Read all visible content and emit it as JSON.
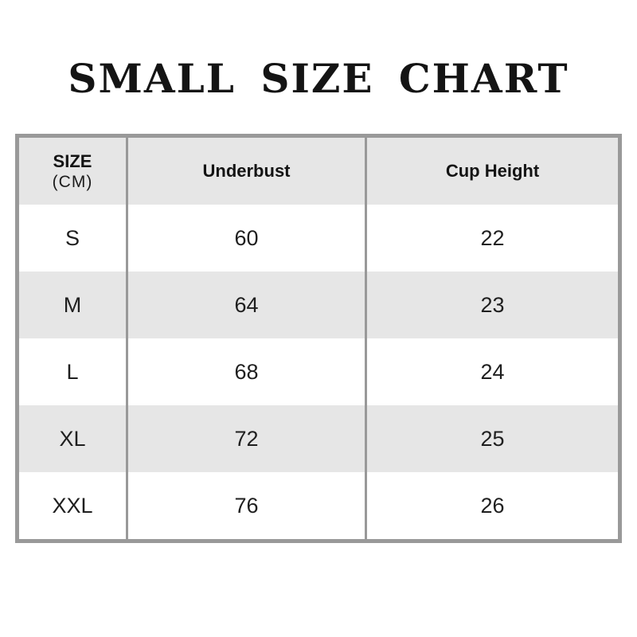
{
  "title": "SMALL SIZE CHART",
  "colors": {
    "background": "#ffffff",
    "header_bg": "#e6e6e6",
    "row_alt_bg": "#e6e6e6",
    "border": "#999999",
    "text": "#1f1f1f",
    "title_text": "#141414"
  },
  "table": {
    "header": {
      "size_label": "SIZE",
      "size_unit": "(CM)",
      "underbust": "Underbust",
      "cup_height": "Cup Height"
    },
    "rows": [
      {
        "size": "S",
        "underbust": "60",
        "cup_height": "22"
      },
      {
        "size": "M",
        "underbust": "64",
        "cup_height": "23"
      },
      {
        "size": "L",
        "underbust": "68",
        "cup_height": "24"
      },
      {
        "size": "XL",
        "underbust": "72",
        "cup_height": "25"
      },
      {
        "size": "XXL",
        "underbust": "76",
        "cup_height": "26"
      }
    ]
  },
  "chart_data": {
    "type": "table",
    "title": "SMALL SIZE CHART",
    "columns": [
      "SIZE (CM)",
      "Underbust",
      "Cup Height"
    ],
    "rows": [
      [
        "S",
        60,
        22
      ],
      [
        "M",
        64,
        23
      ],
      [
        "L",
        68,
        24
      ],
      [
        "XL",
        72,
        25
      ],
      [
        "XXL",
        76,
        26
      ]
    ],
    "layout_hints": {
      "header_background": "#e6e6e6",
      "alternating_rows": true,
      "vertical_dividers_only": true
    }
  }
}
